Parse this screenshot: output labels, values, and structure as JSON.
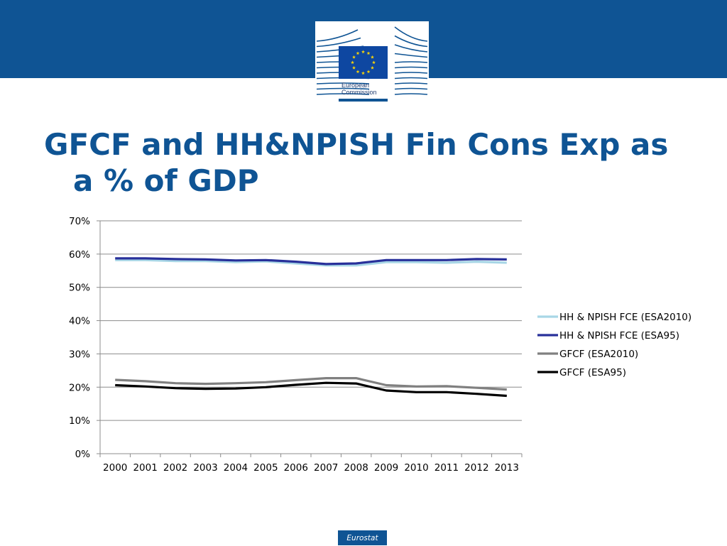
{
  "header": {
    "logo_lines": [
      "European",
      "Commission"
    ]
  },
  "slide": {
    "title_line1": "GFCF and HH&NPISH Fin Cons Exp as",
    "title_line2": "a % of GDP"
  },
  "footer": {
    "badge": "Eurostat"
  },
  "colors": {
    "brand_blue": "#0f5494",
    "eu_flag_blue": "#0e47a1",
    "eu_star_yellow": "#f5d20a"
  },
  "chart_data": {
    "type": "line",
    "title": "",
    "xlabel": "",
    "ylabel": "",
    "categories": [
      "2000",
      "2001",
      "2002",
      "2003",
      "2004",
      "2005",
      "2006",
      "2007",
      "2008",
      "2009",
      "2010",
      "2011",
      "2012",
      "2013"
    ],
    "ylim": [
      0,
      0.7
    ],
    "y_ticks": [
      "0%",
      "10%",
      "20%",
      "30%",
      "40%",
      "50%",
      "60%",
      "70%"
    ],
    "grid": "horizontal",
    "legend_position": "right",
    "series": [
      {
        "name": "HH & NPISH FCE (ESA2010)",
        "color": "#a8d6e6",
        "values": [
          0.582,
          0.582,
          0.579,
          0.579,
          0.576,
          0.578,
          0.572,
          0.566,
          0.566,
          0.576,
          0.576,
          0.574,
          0.577,
          0.574
        ]
      },
      {
        "name": "HH & NPISH FCE (ESA95)",
        "color": "#28309a",
        "values": [
          0.587,
          0.587,
          0.585,
          0.584,
          0.581,
          0.582,
          0.577,
          0.57,
          0.572,
          0.582,
          0.582,
          0.582,
          0.585,
          0.584
        ]
      },
      {
        "name": "GFCF (ESA2010)",
        "color": "#808080",
        "values": [
          0.222,
          0.218,
          0.212,
          0.21,
          0.212,
          0.215,
          0.221,
          0.227,
          0.227,
          0.206,
          0.202,
          0.203,
          0.198,
          0.193
        ]
      },
      {
        "name": "GFCF (ESA95)",
        "color": "#000000",
        "values": [
          0.206,
          0.202,
          0.197,
          0.195,
          0.196,
          0.2,
          0.207,
          0.213,
          0.211,
          0.19,
          0.185,
          0.185,
          0.18,
          0.174
        ]
      }
    ]
  }
}
